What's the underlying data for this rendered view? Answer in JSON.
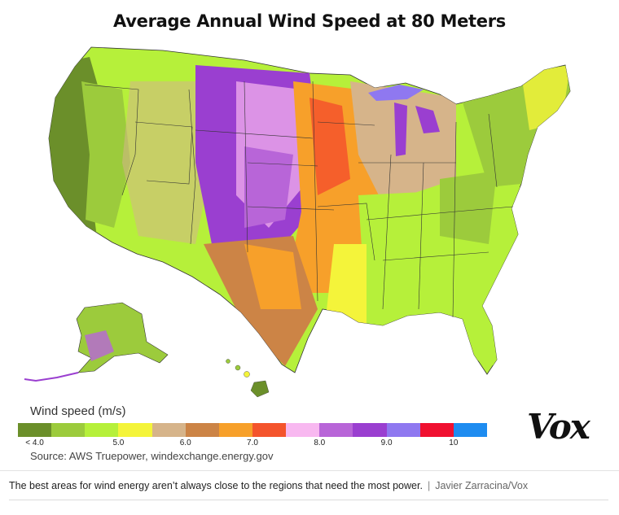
{
  "title": "Average Annual Wind Speed at 80 Meters",
  "legend": {
    "title": "Wind speed (m/s)",
    "colors": [
      "#6b8f2a",
      "#9ccb3c",
      "#b6f03a",
      "#f4f43a",
      "#d6b48a",
      "#cc8446",
      "#f7a02a",
      "#f4542c",
      "#f8b8f0",
      "#b865d8",
      "#9a3fd0",
      "#8f78f0",
      "#f01030",
      "#1e8cf0"
    ],
    "ticks": [
      {
        "label": "< 4.0",
        "pos": 0.5
      },
      {
        "label": "5.0",
        "pos": 3.0
      },
      {
        "label": "6.0",
        "pos": 5.0
      },
      {
        "label": "7.0",
        "pos": 7.0
      },
      {
        "label": "8.0",
        "pos": 9.0
      },
      {
        "label": "9.0",
        "pos": 11.0
      },
      {
        "label": "10",
        "pos": 13.0
      }
    ]
  },
  "source": "Source: AWS Truepower, windexchange.energy.gov",
  "logo": "Vox",
  "caption": {
    "text": "The best areas for wind energy aren’t always close to the regions that need the most power.",
    "separator": "|",
    "credit": "Javier Zarracina/Vox"
  }
}
